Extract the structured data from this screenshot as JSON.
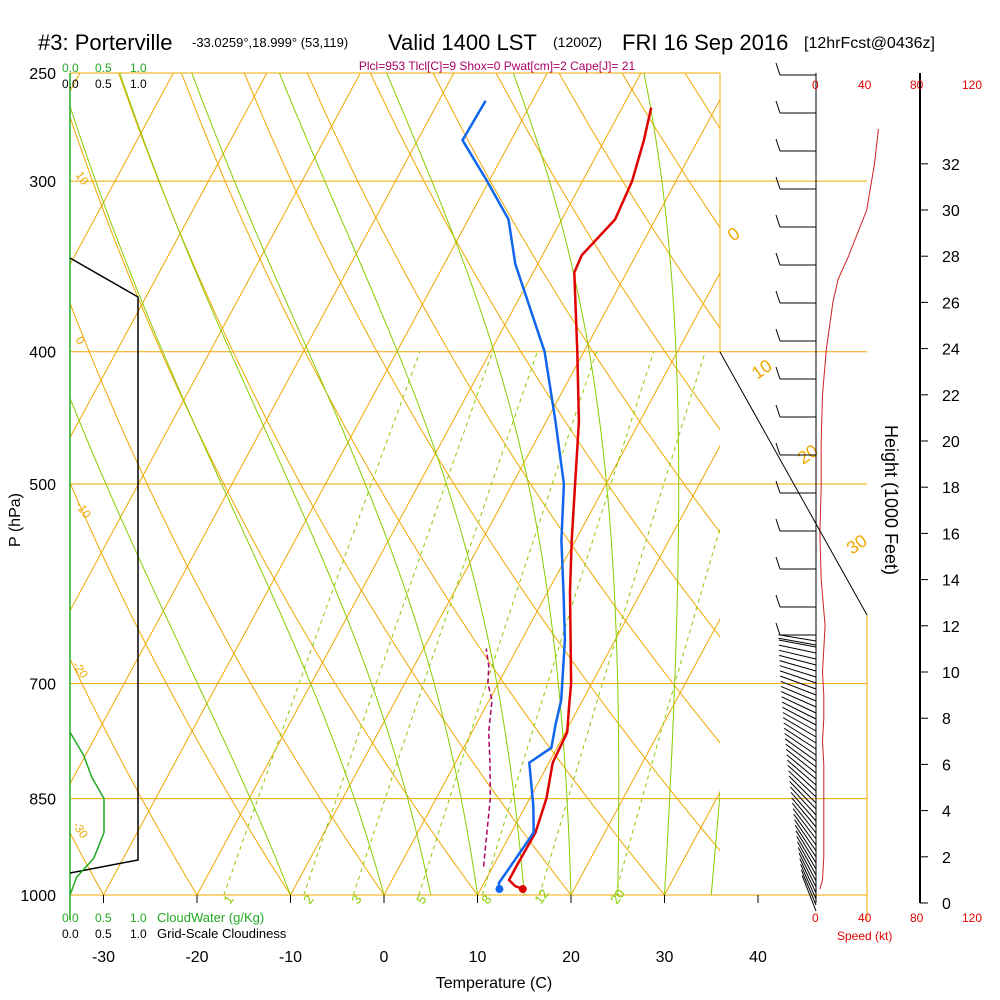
{
  "chart_data": {
    "type": "skew-t sounding",
    "title": {
      "station": "#3: Porterville",
      "coords": "-33.0259°,18.999° (53,119)",
      "valid": "Valid 1400 LST",
      "utc": "(1200Z)",
      "date": "FRI 16 Sep 2016",
      "forecast": "[12hrFcst@0436z]"
    },
    "indices": "Plcl=953 Tlcl[C]=9 Shox=0 Pwat[cm]=2 Cape[J]= 21",
    "xlabel": "Temperature (C)",
    "ylabel": "P (hPa)",
    "y2label": "Height (1000 Feet)",
    "speed_label": "Speed (kt)",
    "cloudwater_label": "CloudWater (g/Kg)",
    "cloudiness_label": "Grid-Scale Cloudiness",
    "temp_ticks": [
      -30,
      -20,
      -10,
      0,
      10,
      20,
      30,
      40
    ],
    "pressure_ticks": [
      250,
      300,
      400,
      500,
      700,
      850,
      1000
    ],
    "height_ticks": [
      0,
      2,
      4,
      6,
      8,
      10,
      12,
      14,
      16,
      18,
      20,
      22,
      24,
      26,
      28,
      30,
      32
    ],
    "speed_ticks": [
      0,
      40,
      80,
      120
    ],
    "cloud_ticks": [
      "0.0",
      "0.5",
      "1.0"
    ],
    "adiabat_labels": [
      "-10",
      "0",
      "10",
      "20",
      "30"
    ],
    "isotherm_labels": [
      "10",
      "0",
      "-10",
      "-20",
      "-30"
    ],
    "mixing_labels": [
      "1",
      "2",
      "3",
      "5",
      "8",
      "12",
      "20"
    ],
    "temperature": {
      "pressure": [
        990,
        985,
        975,
        950,
        900,
        850,
        800,
        760,
        730,
        700,
        650,
        600,
        550,
        500,
        450,
        400,
        350,
        340,
        320,
        300,
        280,
        265
      ],
      "values": [
        14.5,
        13.5,
        12.5,
        12.5,
        12.6,
        11.8,
        10.4,
        10.2,
        9.0,
        7.8,
        5.2,
        2.4,
        -0.4,
        -3.3,
        -6.5,
        -10.7,
        -15.6,
        -15.8,
        -14.3,
        -14.7,
        -15.8,
        -16.9
      ]
    },
    "dewpoint": {
      "pressure": [
        990,
        980,
        960,
        940,
        900,
        860,
        800,
        780,
        750,
        720,
        650,
        600,
        550,
        500,
        450,
        400,
        345,
        320,
        300,
        280,
        262
      ],
      "values": [
        12.0,
        11.6,
        11.8,
        12.0,
        12.4,
        10.8,
        7.9,
        9.4,
        8.5,
        7.7,
        4.6,
        1.7,
        -1.5,
        -4.5,
        -9.0,
        -14.2,
        -22.4,
        -25.7,
        -30.2,
        -35.2,
        -35.0
      ]
    },
    "parcel": {
      "pressure": [
        953,
        900,
        850,
        800,
        760,
        720,
        700,
        680,
        660
      ],
      "values": [
        9.0,
        7.4,
        5.8,
        3.7,
        1.8,
        0.3,
        -1.1,
        -2.0,
        -3.3
      ]
    },
    "cloudwater": {
      "pressure": [
        1000,
        970,
        940,
        900,
        850,
        820,
        790,
        760
      ],
      "values": [
        0.0,
        0.1,
        0.35,
        0.5,
        0.5,
        0.32,
        0.2,
        0.0
      ]
    },
    "cloudiness": {
      "pressure": [
        985,
        975,
        950,
        850,
        700,
        500,
        400,
        370,
        345
      ],
      "values": [
        0.0,
        1.0,
        1.0,
        1.0,
        1.0,
        1.0,
        1.0,
        1.0,
        0.0
      ]
    },
    "wind_speed": {
      "height_kft": [
        0.6,
        1,
        2,
        3,
        4,
        5,
        6,
        7,
        8,
        9,
        10,
        12,
        14,
        16,
        18,
        20,
        22,
        24,
        26,
        27,
        28,
        30,
        32,
        33.5
      ],
      "values": [
        3,
        5,
        6,
        6,
        6,
        6,
        6,
        5,
        6,
        6,
        5,
        7,
        4,
        3,
        4,
        4,
        5,
        8,
        13,
        17,
        25,
        39,
        45,
        48
      ]
    }
  }
}
